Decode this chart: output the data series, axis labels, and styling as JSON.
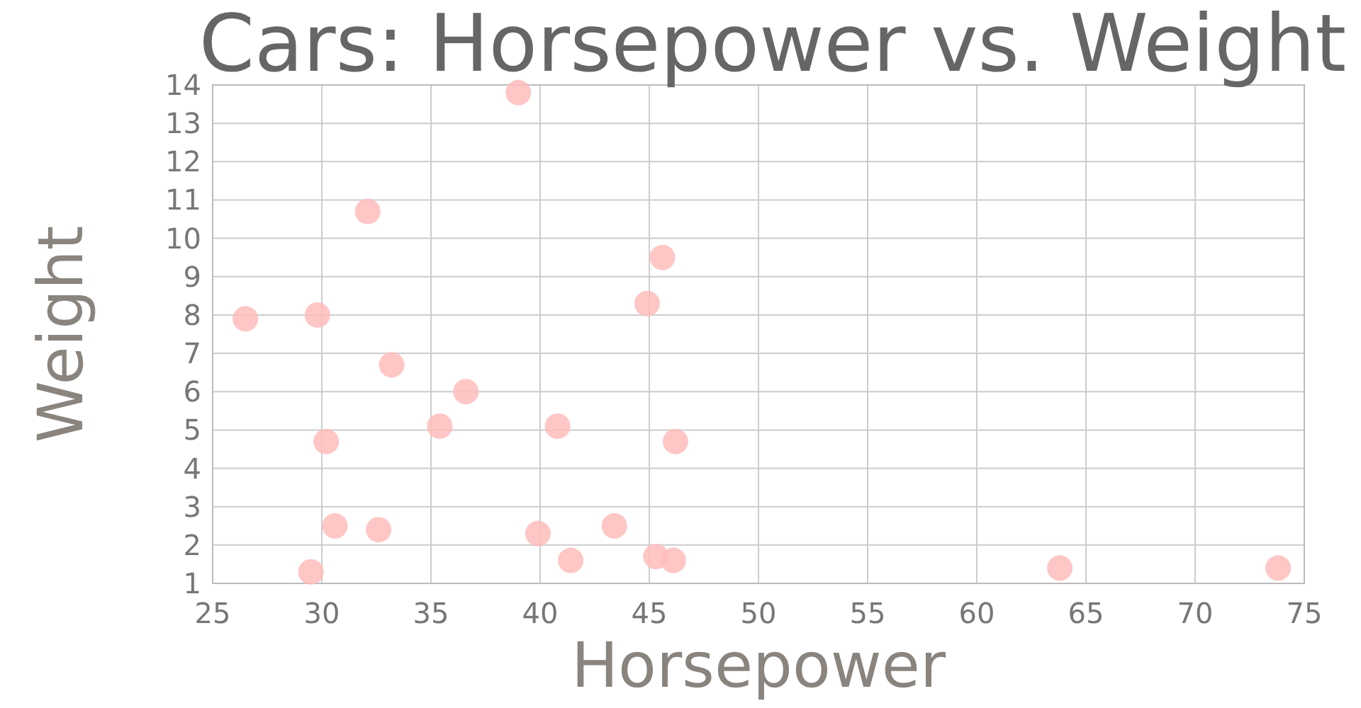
{
  "chart_data": {
    "type": "scatter",
    "title": "Cars: Horsepower vs. Weight",
    "xlabel": "Horsepower",
    "ylabel": "Weight",
    "x": [
      26.5,
      29.8,
      32.1,
      39.0,
      45.6,
      44.9,
      33.2,
      36.6,
      35.4,
      40.8,
      30.2,
      46.2,
      30.6,
      32.6,
      39.9,
      43.4,
      29.5,
      41.4,
      45.3,
      46.1,
      63.8,
      73.8
    ],
    "series": [
      {
        "color": "#ffbcbc",
        "values": [
          7.9,
          8.0,
          10.7,
          13.8,
          9.5,
          8.3,
          6.7,
          6.0,
          5.1,
          5.1,
          4.7,
          4.7,
          2.5,
          2.4,
          2.3,
          2.5,
          1.3,
          1.6,
          1.7,
          1.6,
          1.4,
          1.4
        ]
      }
    ],
    "xlim": [
      25,
      75
    ],
    "xticks": [
      25,
      30,
      35,
      40,
      45,
      50,
      55,
      60,
      65,
      70,
      75
    ],
    "ylim": [
      1,
      14
    ],
    "yticks": [
      1,
      2,
      3,
      4,
      5,
      6,
      7,
      8,
      9,
      10,
      11,
      12,
      13,
      14
    ],
    "grid": true,
    "marker": "circle"
  }
}
